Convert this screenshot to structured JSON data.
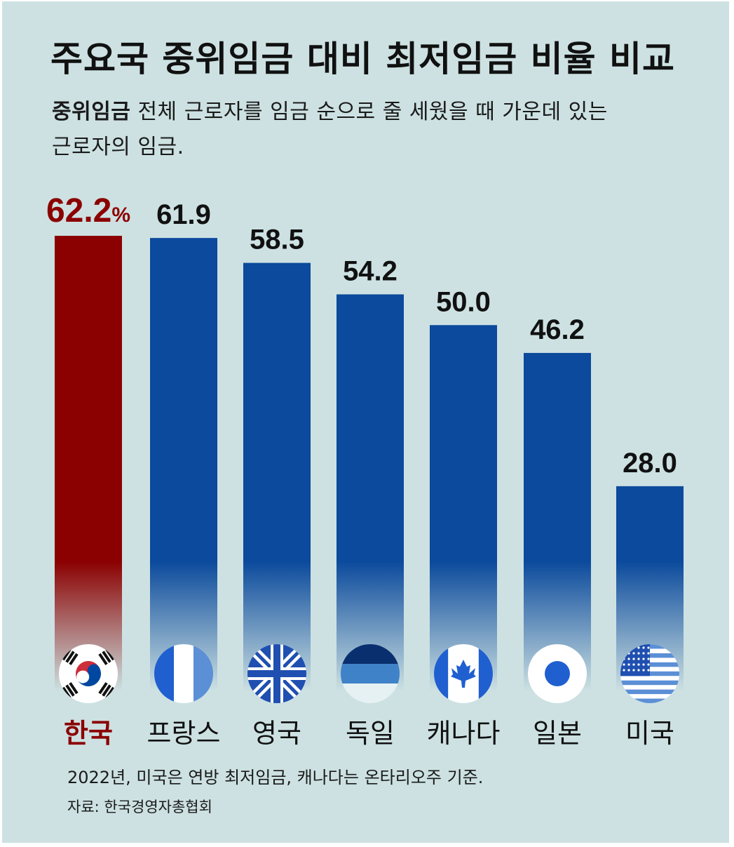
{
  "title": "주요국 중위임금 대비 최저임금 비율 비교",
  "definition": {
    "term": "중위임금",
    "text_line1": "전체 근로자를 임금 순으로 줄 세웠을 때 가운데 있는",
    "text_line2": "근로자의 임금."
  },
  "footnote": "2022년, 미국은 연방 최저임금, 캐나다는 온타리오주 기준.",
  "source": "자료: 한국경영자총협회",
  "colors": {
    "background": "#cde1e2",
    "highlight_bar": "#8b0000",
    "bar": "#0b4a9c",
    "highlight_text": "#8b0000",
    "text": "#111111"
  },
  "chart_data": {
    "type": "bar",
    "categories": [
      "한국",
      "프랑스",
      "영국",
      "독일",
      "캐나다",
      "일본",
      "미국"
    ],
    "values": [
      62.2,
      61.9,
      58.5,
      54.2,
      50.0,
      46.2,
      28.0
    ],
    "value_labels": [
      "62.2",
      "61.9",
      "58.5",
      "54.2",
      "50.0",
      "46.2",
      "28.0"
    ],
    "unit": "%",
    "highlight_index": 0,
    "flag_icons": [
      "south-korea-flag-icon",
      "france-flag-icon",
      "uk-flag-icon",
      "germany-flag-icon",
      "canada-flag-icon",
      "japan-flag-icon",
      "usa-flag-icon"
    ],
    "ylim": [
      0,
      62.2
    ],
    "grid": false,
    "legend": "none"
  }
}
